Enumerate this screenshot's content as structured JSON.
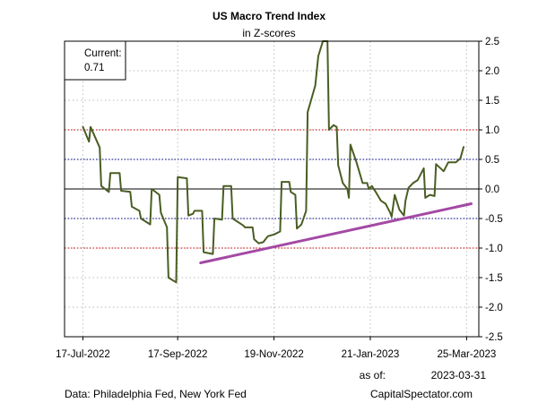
{
  "chart_data": {
    "type": "line",
    "title": "US Macro Trend Index",
    "subtitle": "in Z-scores",
    "current_label": "Current:",
    "current_value": "0.71",
    "ylim": [
      -2.5,
      2.5
    ],
    "yticks": [
      "2.5",
      "2.0",
      "1.5",
      "1.0",
      "0.5",
      "0.0",
      "-0.5",
      "-1.0",
      "-1.5",
      "-2.0",
      "-2.5"
    ],
    "ytick_values": [
      2.5,
      2.0,
      1.5,
      1.0,
      0.5,
      0.0,
      -0.5,
      -1.0,
      -1.5,
      -2.0,
      -2.5
    ],
    "xticks": [
      "17-Jul-2022",
      "17-Sep-2022",
      "19-Nov-2022",
      "21-Jan-2023",
      "25-Mar-2023"
    ],
    "xtick_dates": [
      "2022-07-17",
      "2022-09-17",
      "2022-11-19",
      "2023-01-21",
      "2023-03-25"
    ],
    "as_of_label": "as of:",
    "as_of_date": "2023-03-31",
    "source": "Data: Philadelphia Fed, New York Fed",
    "credit": "CapitalSpectator.com",
    "grid": true,
    "reference_lines": [
      {
        "y": 1.0,
        "color": "#cc0000",
        "style": "dotted"
      },
      {
        "y": 0.5,
        "color": "#00008b",
        "style": "dotted"
      },
      {
        "y": 0.0,
        "color": "#000000",
        "style": "solid"
      },
      {
        "y": -0.5,
        "color": "#00008b",
        "style": "dotted"
      },
      {
        "y": -1.0,
        "color": "#cc0000",
        "style": "dotted"
      }
    ],
    "series": [
      {
        "color": "#4a5d23",
        "points": [
          [
            "2022-07-17",
            1.05
          ],
          [
            "2022-07-21",
            0.8
          ],
          [
            "2022-07-22",
            1.05
          ],
          [
            "2022-07-28",
            0.7
          ],
          [
            "2022-07-29",
            0.05
          ],
          [
            "2022-08-03",
            -0.05
          ],
          [
            "2022-08-04",
            0.27
          ],
          [
            "2022-08-10",
            0.27
          ],
          [
            "2022-08-11",
            -0.03
          ],
          [
            "2022-08-17",
            -0.05
          ],
          [
            "2022-08-18",
            -0.3
          ],
          [
            "2022-08-23",
            -0.37
          ],
          [
            "2022-08-24",
            -0.5
          ],
          [
            "2022-08-30",
            -0.6
          ],
          [
            "2022-08-31",
            0.0
          ],
          [
            "2022-09-05",
            -0.1
          ],
          [
            "2022-09-06",
            -0.4
          ],
          [
            "2022-09-10",
            -0.65
          ],
          [
            "2022-09-11",
            -1.5
          ],
          [
            "2022-09-16",
            -1.58
          ],
          [
            "2022-09-17",
            0.2
          ],
          [
            "2022-09-23",
            0.18
          ],
          [
            "2022-09-24",
            -0.45
          ],
          [
            "2022-09-27",
            -0.42
          ],
          [
            "2022-09-28",
            -0.37
          ],
          [
            "2022-10-03",
            -0.37
          ],
          [
            "2022-10-04",
            -1.07
          ],
          [
            "2022-10-10",
            -1.1
          ],
          [
            "2022-10-11",
            -0.5
          ],
          [
            "2022-10-16",
            -0.52
          ],
          [
            "2022-10-17",
            0.05
          ],
          [
            "2022-10-22",
            0.05
          ],
          [
            "2022-10-23",
            -0.5
          ],
          [
            "2022-10-30",
            -0.62
          ],
          [
            "2022-10-31",
            -0.65
          ],
          [
            "2022-11-05",
            -0.65
          ],
          [
            "2022-11-06",
            -0.85
          ],
          [
            "2022-11-09",
            -0.92
          ],
          [
            "2022-11-12",
            -0.9
          ],
          [
            "2022-11-15",
            -0.8
          ],
          [
            "2022-11-19",
            -0.77
          ],
          [
            "2022-11-23",
            -0.72
          ],
          [
            "2022-11-24",
            0.12
          ],
          [
            "2022-11-29",
            0.12
          ],
          [
            "2022-11-30",
            -0.05
          ],
          [
            "2022-12-03",
            -0.1
          ],
          [
            "2022-12-04",
            -0.67
          ],
          [
            "2022-12-07",
            -0.6
          ],
          [
            "2022-12-10",
            -0.37
          ],
          [
            "2022-12-11",
            1.3
          ],
          [
            "2022-12-16",
            1.75
          ],
          [
            "2022-12-18",
            2.25
          ],
          [
            "2022-12-21",
            2.5
          ],
          [
            "2022-12-24",
            2.5
          ],
          [
            "2022-12-25",
            1.0
          ],
          [
            "2022-12-28",
            1.08
          ],
          [
            "2022-12-30",
            1.05
          ],
          [
            "2022-12-31",
            0.4
          ],
          [
            "2023-01-03",
            0.1
          ],
          [
            "2023-01-06",
            0.0
          ],
          [
            "2023-01-07",
            -0.15
          ],
          [
            "2023-01-08",
            0.75
          ],
          [
            "2023-01-12",
            0.45
          ],
          [
            "2023-01-16",
            0.1
          ],
          [
            "2023-01-19",
            0.1
          ],
          [
            "2023-01-20",
            0.0
          ],
          [
            "2023-01-22",
            0.05
          ],
          [
            "2023-01-25",
            -0.07
          ],
          [
            "2023-01-28",
            -0.2
          ],
          [
            "2023-01-31",
            -0.25
          ],
          [
            "2023-02-03",
            -0.4
          ],
          [
            "2023-02-04",
            -0.47
          ],
          [
            "2023-02-06",
            -0.1
          ],
          [
            "2023-02-09",
            -0.35
          ],
          [
            "2023-02-12",
            -0.45
          ],
          [
            "2023-02-13",
            -0.2
          ],
          [
            "2023-02-15",
            0.02
          ],
          [
            "2023-02-18",
            0.1
          ],
          [
            "2023-02-21",
            0.15
          ],
          [
            "2023-02-24",
            0.3
          ],
          [
            "2023-02-25",
            0.35
          ],
          [
            "2023-02-26",
            -0.15
          ],
          [
            "2023-03-01",
            -0.1
          ],
          [
            "2023-03-04",
            -0.12
          ],
          [
            "2023-03-05",
            0.42
          ],
          [
            "2023-03-10",
            0.3
          ],
          [
            "2023-03-13",
            0.45
          ],
          [
            "2023-03-18",
            0.45
          ],
          [
            "2023-03-21",
            0.52
          ],
          [
            "2023-03-23",
            0.71
          ]
        ]
      },
      {
        "color": "#a349a4",
        "points": [
          [
            "2022-10-02",
            -1.25
          ],
          [
            "2023-03-28",
            -0.25
          ]
        ]
      }
    ]
  }
}
